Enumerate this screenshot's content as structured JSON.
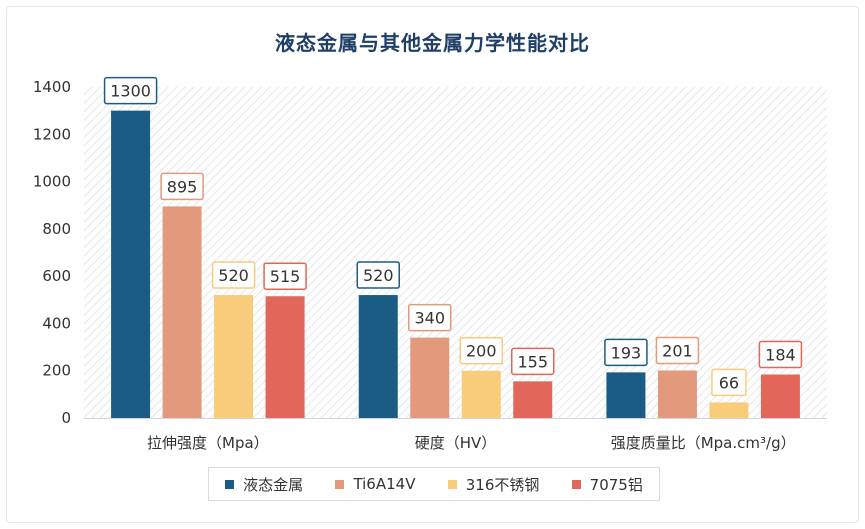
{
  "chart_data": {
    "type": "bar",
    "title": "液态金属与其他金属力学性能对比",
    "categories": [
      "拉伸强度（Mpa）",
      "硬度（HV）",
      "强度质量比（Mpa.cm³/g）"
    ],
    "series": [
      {
        "name": "液态金属",
        "color": "#1b5c84",
        "values": [
          1300,
          520,
          193
        ]
      },
      {
        "name": "Ti6A14V",
        "color": "#e2997c",
        "values": [
          895,
          340,
          201
        ]
      },
      {
        "name": "316不锈钢",
        "color": "#f9cc7c",
        "values": [
          520,
          200,
          66
        ]
      },
      {
        "name": "7075铝",
        "color": "#e2665a",
        "values": [
          515,
          155,
          184
        ]
      }
    ],
    "yticks": [
      0,
      200,
      400,
      600,
      800,
      1000,
      1200,
      1400
    ],
    "ylim": [
      0,
      1400
    ],
    "grid": false,
    "legend": "bottom",
    "data_labels": true
  }
}
